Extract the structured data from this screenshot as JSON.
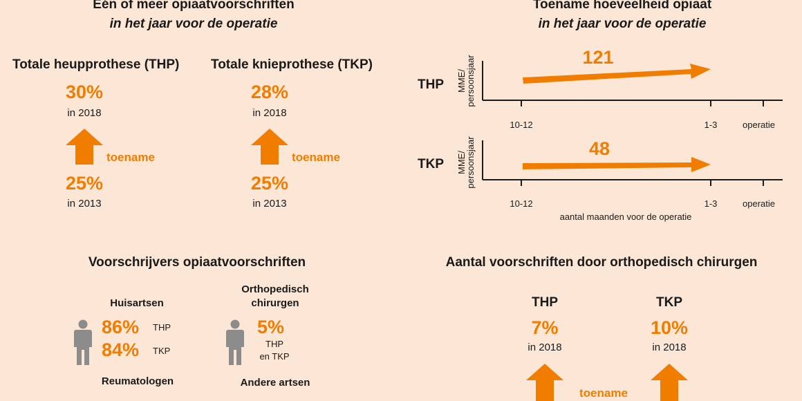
{
  "top_left": {
    "title": "Eén of meer opiaatvoorschriften",
    "subtitle": "in het jaar voor de operatie",
    "thp": {
      "heading": "Totale heupprothese (THP)",
      "pct_2018": "30%",
      "year_2018": "in 2018",
      "increase": "toename",
      "pct_2013": "25%",
      "year_2013": "in 2013"
    },
    "tkp": {
      "heading": "Totale knieprothese (TKP)",
      "pct_2018": "28%",
      "year_2018": "in 2018",
      "increase": "toename",
      "pct_2013": "25%",
      "year_2013": "in 2013"
    }
  },
  "top_right": {
    "title": "Toename hoeveelheid opiaat",
    "subtitle": "in het jaar voor de operatie",
    "rows": [
      {
        "label": "THP",
        "value": "121",
        "ylabel_1": "MME/",
        "ylabel_2": "persoonsjaar",
        "ticks": [
          "10-12",
          "1-3",
          "operatie"
        ]
      },
      {
        "label": "TKP",
        "value": "48",
        "ylabel_1": "MME/",
        "ylabel_2": "persoonsjaar",
        "ticks": [
          "10-12",
          "1-3",
          "operatie"
        ]
      }
    ],
    "xlabel": "aantal maanden voor de operatie"
  },
  "bottom_left": {
    "title": "Voorschrijvers opiaatvoorschriften",
    "gp": {
      "heading": "Huisartsen",
      "pct_thp": "86%",
      "label_thp": "THP",
      "pct_tkp": "84%",
      "label_tkp": "TKP",
      "footer": "Reumatologen"
    },
    "ortho": {
      "heading_1": "Orthopedisch",
      "heading_2": "chirurgen",
      "pct": "5%",
      "label_1": "THP",
      "label_2": "en TKP",
      "footer": "Andere artsen"
    }
  },
  "bottom_right": {
    "title": "Aantal voorschriften door orthopedisch chirurgen",
    "thp": {
      "heading": "THP",
      "pct": "7%",
      "year": "in 2018"
    },
    "tkp": {
      "heading": "TKP",
      "pct": "10%",
      "year": "in 2018"
    },
    "increase": "toename"
  },
  "colors": {
    "accent": "#f07d00",
    "background": "#fce6d6",
    "person": "#8c8c8c"
  }
}
